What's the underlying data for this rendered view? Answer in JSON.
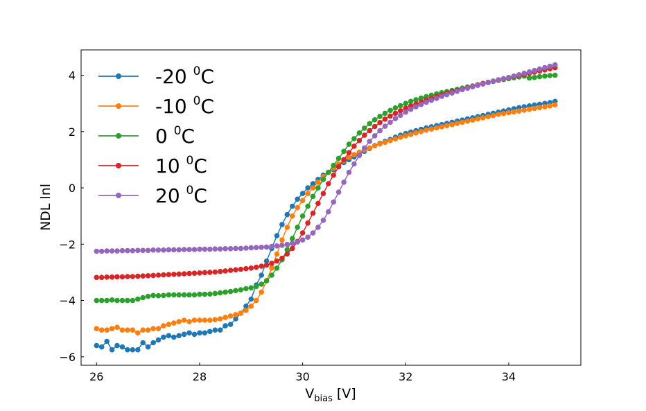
{
  "chart_data": {
    "type": "line",
    "title": "",
    "xlabel": "V",
    "xlabel_sub": "bias",
    "xlabel_suffix": " [V]",
    "ylabel": "NDL lnl",
    "xlim": [
      25.7,
      35.4
    ],
    "ylim": [
      -6.3,
      4.9
    ],
    "xticks": [
      26,
      28,
      30,
      32,
      34
    ],
    "yticks": [
      -6,
      -4,
      -2,
      0,
      2,
      4
    ],
    "ytick_labels": [
      "−6",
      "−4",
      "−2",
      "0",
      "2",
      "4"
    ],
    "grid": false,
    "legend_position": "top-left",
    "legend_unit": "C",
    "legend_sup": "0",
    "series": [
      {
        "name": "-20",
        "color": "#1f77b4",
        "x": [
          26.0,
          26.1,
          26.2,
          26.3,
          26.4,
          26.5,
          26.6,
          26.7,
          26.8,
          26.9,
          27.0,
          27.1,
          27.2,
          27.3,
          27.4,
          27.5,
          27.6,
          27.7,
          27.8,
          27.9,
          28.0,
          28.1,
          28.2,
          28.3,
          28.4,
          28.5,
          28.6,
          28.7,
          28.8,
          28.9,
          29.0,
          29.1,
          29.2,
          29.3,
          29.4,
          29.5,
          29.6,
          29.7,
          29.8,
          29.9,
          30.0,
          30.1,
          30.2,
          30.3,
          30.4,
          30.5,
          30.6,
          30.7,
          30.8,
          30.9,
          31.0,
          31.1,
          31.2,
          31.3,
          31.4,
          31.5,
          31.6,
          31.7,
          31.8,
          31.9,
          32.0,
          32.1,
          32.2,
          32.3,
          32.4,
          32.5,
          32.6,
          32.7,
          32.8,
          32.9,
          33.0,
          33.1,
          33.2,
          33.3,
          33.4,
          33.5,
          33.6,
          33.7,
          33.8,
          33.9,
          34.0,
          34.1,
          34.2,
          34.3,
          34.4,
          34.5,
          34.6,
          34.7,
          34.8,
          34.9
        ],
        "y": [
          -5.6,
          -5.65,
          -5.45,
          -5.75,
          -5.6,
          -5.65,
          -5.75,
          -5.75,
          -5.75,
          -5.5,
          -5.65,
          -5.5,
          -5.4,
          -5.3,
          -5.25,
          -5.3,
          -5.25,
          -5.2,
          -5.15,
          -5.2,
          -5.15,
          -5.15,
          -5.1,
          -5.05,
          -5.05,
          -4.9,
          -4.85,
          -4.65,
          -4.45,
          -4.2,
          -3.95,
          -3.45,
          -3.1,
          -2.6,
          -2.15,
          -1.7,
          -1.3,
          -0.95,
          -0.65,
          -0.4,
          -0.2,
          0.0,
          0.15,
          0.3,
          0.45,
          0.55,
          0.65,
          0.8,
          0.9,
          1.0,
          1.1,
          1.2,
          1.3,
          1.4,
          1.5,
          1.58,
          1.65,
          1.72,
          1.8,
          1.87,
          1.93,
          1.98,
          2.03,
          2.08,
          2.13,
          2.17,
          2.21,
          2.25,
          2.29,
          2.33,
          2.37,
          2.41,
          2.45,
          2.49,
          2.53,
          2.57,
          2.61,
          2.65,
          2.69,
          2.73,
          2.77,
          2.81,
          2.85,
          2.88,
          2.91,
          2.94,
          2.97,
          3.0,
          3.03,
          3.07
        ]
      },
      {
        "name": "-10",
        "color": "#ff7f0e",
        "x": [
          26.0,
          26.1,
          26.2,
          26.3,
          26.4,
          26.5,
          26.6,
          26.7,
          26.8,
          26.9,
          27.0,
          27.1,
          27.2,
          27.3,
          27.4,
          27.5,
          27.6,
          27.7,
          27.8,
          27.9,
          28.0,
          28.1,
          28.2,
          28.3,
          28.4,
          28.5,
          28.6,
          28.7,
          28.8,
          28.9,
          29.0,
          29.1,
          29.2,
          29.3,
          29.4,
          29.5,
          29.6,
          29.7,
          29.8,
          29.9,
          30.0,
          30.1,
          30.2,
          30.3,
          30.4,
          30.5,
          30.6,
          30.7,
          30.8,
          30.9,
          31.0,
          31.1,
          31.2,
          31.3,
          31.4,
          31.5,
          31.6,
          31.7,
          31.8,
          31.9,
          32.0,
          32.1,
          32.2,
          32.3,
          32.4,
          32.5,
          32.6,
          32.7,
          32.8,
          32.9,
          33.0,
          33.1,
          33.2,
          33.3,
          33.4,
          33.5,
          33.6,
          33.7,
          33.8,
          33.9,
          34.0,
          34.1,
          34.2,
          34.3,
          34.4,
          34.5,
          34.6,
          34.7,
          34.8,
          34.9
        ],
        "y": [
          -5.0,
          -5.05,
          -5.05,
          -5.0,
          -4.95,
          -5.05,
          -5.05,
          -5.05,
          -5.15,
          -5.05,
          -5.05,
          -5.0,
          -5.0,
          -4.9,
          -4.85,
          -4.8,
          -4.75,
          -4.7,
          -4.75,
          -4.7,
          -4.7,
          -4.7,
          -4.7,
          -4.68,
          -4.65,
          -4.6,
          -4.55,
          -4.5,
          -4.45,
          -4.35,
          -4.2,
          -4.0,
          -3.7,
          -3.3,
          -2.85,
          -2.35,
          -1.85,
          -1.4,
          -1.0,
          -0.7,
          -0.45,
          -0.2,
          0.0,
          0.2,
          0.4,
          0.55,
          0.7,
          0.85,
          0.97,
          1.08,
          1.18,
          1.27,
          1.35,
          1.42,
          1.49,
          1.56,
          1.62,
          1.68,
          1.74,
          1.8,
          1.85,
          1.9,
          1.95,
          2.0,
          2.05,
          2.09,
          2.13,
          2.17,
          2.21,
          2.25,
          2.29,
          2.33,
          2.37,
          2.41,
          2.45,
          2.49,
          2.53,
          2.57,
          2.61,
          2.64,
          2.67,
          2.7,
          2.73,
          2.76,
          2.79,
          2.82,
          2.85,
          2.88,
          2.91,
          2.95
        ]
      },
      {
        "name": "0",
        "color": "#2ca02c",
        "x": [
          26.0,
          26.1,
          26.2,
          26.3,
          26.4,
          26.5,
          26.6,
          26.7,
          26.8,
          26.9,
          27.0,
          27.1,
          27.2,
          27.3,
          27.4,
          27.5,
          27.6,
          27.7,
          27.8,
          27.9,
          28.0,
          28.1,
          28.2,
          28.3,
          28.4,
          28.5,
          28.6,
          28.7,
          28.8,
          28.9,
          29.0,
          29.1,
          29.2,
          29.3,
          29.4,
          29.5,
          29.6,
          29.7,
          29.8,
          29.9,
          30.0,
          30.1,
          30.2,
          30.3,
          30.4,
          30.5,
          30.6,
          30.7,
          30.8,
          30.9,
          31.0,
          31.1,
          31.2,
          31.3,
          31.4,
          31.5,
          31.6,
          31.7,
          31.8,
          31.9,
          32.0,
          32.1,
          32.2,
          32.3,
          32.4,
          32.5,
          32.6,
          32.7,
          32.8,
          32.9,
          33.0,
          33.1,
          33.2,
          33.3,
          33.4,
          33.5,
          33.6,
          33.7,
          33.8,
          33.9,
          34.0,
          34.1,
          34.2,
          34.3,
          34.4,
          34.5,
          34.6,
          34.7,
          34.8,
          34.9
        ],
        "y": [
          -4.0,
          -4.0,
          -4.0,
          -3.98,
          -4.0,
          -4.0,
          -4.0,
          -4.0,
          -3.95,
          -3.9,
          -3.85,
          -3.82,
          -3.83,
          -3.82,
          -3.8,
          -3.8,
          -3.8,
          -3.8,
          -3.8,
          -3.8,
          -3.78,
          -3.78,
          -3.77,
          -3.75,
          -3.73,
          -3.7,
          -3.68,
          -3.65,
          -3.62,
          -3.58,
          -3.55,
          -3.5,
          -3.42,
          -3.3,
          -3.1,
          -2.85,
          -2.55,
          -2.2,
          -1.8,
          -1.4,
          -1.0,
          -0.65,
          -0.3,
          0.0,
          0.3,
          0.55,
          0.8,
          1.05,
          1.3,
          1.55,
          1.75,
          1.95,
          2.12,
          2.28,
          2.42,
          2.54,
          2.65,
          2.75,
          2.84,
          2.92,
          3.0,
          3.07,
          3.13,
          3.19,
          3.24,
          3.29,
          3.34,
          3.38,
          3.42,
          3.46,
          3.5,
          3.54,
          3.58,
          3.62,
          3.66,
          3.7,
          3.74,
          3.78,
          3.82,
          3.85,
          3.88,
          3.91,
          3.94,
          3.97,
          3.9,
          3.92,
          3.95,
          3.97,
          3.99,
          4.0
        ]
      },
      {
        "name": "10",
        "color": "#d62728",
        "x": [
          26.0,
          26.1,
          26.2,
          26.3,
          26.4,
          26.5,
          26.6,
          26.7,
          26.8,
          26.9,
          27.0,
          27.1,
          27.2,
          27.3,
          27.4,
          27.5,
          27.6,
          27.7,
          27.8,
          27.9,
          28.0,
          28.1,
          28.2,
          28.3,
          28.4,
          28.5,
          28.6,
          28.7,
          28.8,
          28.9,
          29.0,
          29.1,
          29.2,
          29.3,
          29.4,
          29.5,
          29.6,
          29.7,
          29.8,
          29.9,
          30.0,
          30.1,
          30.2,
          30.3,
          30.4,
          30.5,
          30.6,
          30.7,
          30.8,
          30.9,
          31.0,
          31.1,
          31.2,
          31.3,
          31.4,
          31.5,
          31.6,
          31.7,
          31.8,
          31.9,
          32.0,
          32.1,
          32.2,
          32.3,
          32.4,
          32.5,
          32.6,
          32.7,
          32.8,
          32.9,
          33.0,
          33.1,
          33.2,
          33.3,
          33.4,
          33.5,
          33.6,
          33.7,
          33.8,
          33.9,
          34.0,
          34.1,
          34.2,
          34.3,
          34.4,
          34.5,
          34.6,
          34.7,
          34.8,
          34.9
        ],
        "y": [
          -3.18,
          -3.18,
          -3.17,
          -3.17,
          -3.16,
          -3.16,
          -3.15,
          -3.15,
          -3.14,
          -3.13,
          -3.12,
          -3.11,
          -3.1,
          -3.09,
          -3.08,
          -3.07,
          -3.06,
          -3.05,
          -3.04,
          -3.03,
          -3.02,
          -3.01,
          -3.0,
          -2.99,
          -2.97,
          -2.95,
          -2.93,
          -2.91,
          -2.89,
          -2.87,
          -2.85,
          -2.82,
          -2.78,
          -2.74,
          -2.68,
          -2.6,
          -2.5,
          -2.35,
          -2.15,
          -1.9,
          -1.6,
          -1.25,
          -0.9,
          -0.55,
          -0.2,
          0.15,
          0.45,
          0.75,
          1.0,
          1.25,
          1.48,
          1.68,
          1.87,
          2.03,
          2.18,
          2.32,
          2.44,
          2.55,
          2.65,
          2.74,
          2.83,
          2.91,
          2.98,
          3.05,
          3.12,
          3.18,
          3.24,
          3.3,
          3.36,
          3.41,
          3.46,
          3.51,
          3.56,
          3.61,
          3.66,
          3.71,
          3.75,
          3.79,
          3.83,
          3.87,
          3.91,
          3.95,
          3.99,
          4.03,
          4.07,
          4.11,
          4.15,
          4.19,
          4.23,
          4.27
        ]
      },
      {
        "name": "20",
        "color": "#9467bd",
        "x": [
          26.0,
          26.1,
          26.2,
          26.3,
          26.4,
          26.5,
          26.6,
          26.7,
          26.8,
          26.9,
          27.0,
          27.1,
          27.2,
          27.3,
          27.4,
          27.5,
          27.6,
          27.7,
          27.8,
          27.9,
          28.0,
          28.1,
          28.2,
          28.3,
          28.4,
          28.5,
          28.6,
          28.7,
          28.8,
          28.9,
          29.0,
          29.1,
          29.2,
          29.3,
          29.4,
          29.5,
          29.6,
          29.7,
          29.8,
          29.9,
          30.0,
          30.1,
          30.2,
          30.3,
          30.4,
          30.5,
          30.6,
          30.7,
          30.8,
          30.9,
          31.0,
          31.1,
          31.2,
          31.3,
          31.4,
          31.5,
          31.6,
          31.7,
          31.8,
          31.9,
          32.0,
          32.1,
          32.2,
          32.3,
          32.4,
          32.5,
          32.6,
          32.7,
          32.8,
          32.9,
          33.0,
          33.1,
          33.2,
          33.3,
          33.4,
          33.5,
          33.6,
          33.7,
          33.8,
          33.9,
          34.0,
          34.1,
          34.2,
          34.3,
          34.4,
          34.5,
          34.6,
          34.7,
          34.8,
          34.9
        ],
        "y": [
          -2.25,
          -2.25,
          -2.24,
          -2.24,
          -2.24,
          -2.23,
          -2.23,
          -2.23,
          -2.22,
          -2.22,
          -2.22,
          -2.21,
          -2.21,
          -2.21,
          -2.2,
          -2.2,
          -2.2,
          -2.19,
          -2.19,
          -2.19,
          -2.18,
          -2.18,
          -2.18,
          -2.17,
          -2.17,
          -2.16,
          -2.16,
          -2.15,
          -2.15,
          -2.14,
          -2.13,
          -2.12,
          -2.11,
          -2.1,
          -2.08,
          -2.06,
          -2.04,
          -2.01,
          -1.97,
          -1.92,
          -1.85,
          -1.75,
          -1.6,
          -1.4,
          -1.15,
          -0.85,
          -0.5,
          -0.15,
          0.2,
          0.55,
          0.85,
          1.15,
          1.42,
          1.65,
          1.85,
          2.03,
          2.19,
          2.33,
          2.46,
          2.58,
          2.69,
          2.79,
          2.88,
          2.96,
          3.04,
          3.11,
          3.18,
          3.25,
          3.31,
          3.37,
          3.43,
          3.49,
          3.54,
          3.59,
          3.64,
          3.69,
          3.74,
          3.79,
          3.84,
          3.88,
          3.92,
          3.97,
          4.02,
          4.07,
          4.12,
          4.17,
          4.22,
          4.27,
          4.32,
          4.37
        ]
      }
    ]
  }
}
